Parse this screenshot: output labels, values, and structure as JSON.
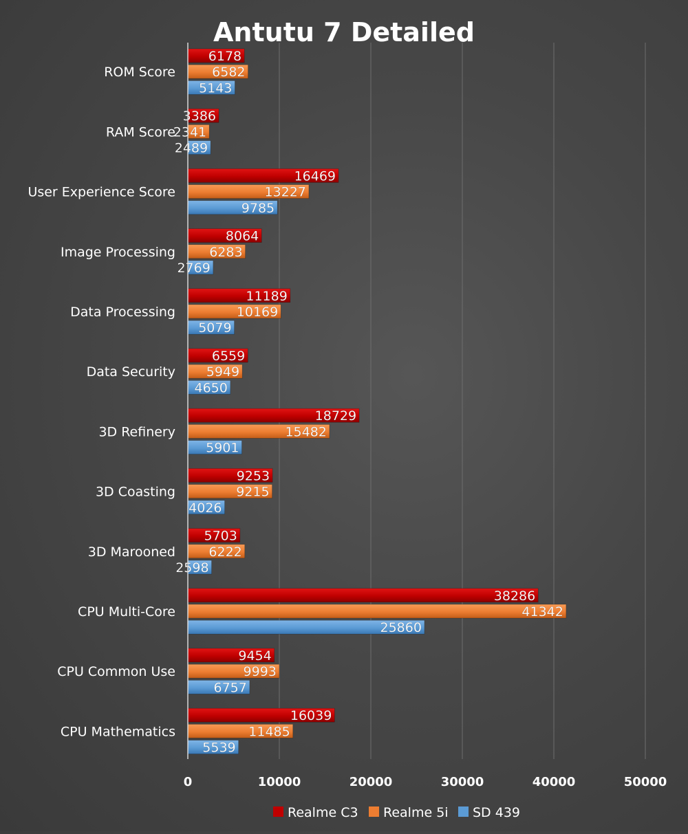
{
  "chart_data": {
    "type": "bar",
    "orientation": "horizontal",
    "title": "Antutu 7 Detailed",
    "categories": [
      "ROM Score",
      "RAM Score",
      "User Experience Score",
      "Image Processing",
      "Data Processing",
      "Data Security",
      "3D Refinery",
      "3D Coasting",
      "3D Marooned",
      "CPU Multi-Core",
      "CPU Common Use",
      "CPU Mathematics"
    ],
    "series": [
      {
        "name": "Realme C3",
        "color": "#c00000",
        "values": [
          6178,
          3386,
          16469,
          8064,
          11189,
          6559,
          18729,
          9253,
          5703,
          38286,
          9454,
          16039
        ]
      },
      {
        "name": "Realme 5i",
        "color": "#ed7d31",
        "values": [
          6582,
          2341,
          13227,
          6283,
          10169,
          5949,
          15482,
          9215,
          6222,
          41342,
          9993,
          11485
        ]
      },
      {
        "name": "SD 439",
        "color": "#5b9bd5",
        "values": [
          5143,
          2489,
          9785,
          2769,
          5079,
          4650,
          5901,
          4026,
          2598,
          25860,
          6757,
          5539
        ]
      }
    ],
    "xlim": [
      0,
      50000
    ],
    "xticks": [
      "0",
      "10000",
      "20000",
      "30000",
      "40000",
      "50000"
    ],
    "xtick_values": [
      0,
      10000,
      20000,
      30000,
      40000,
      50000
    ],
    "grid": "vertical",
    "legend_position": "bottom",
    "data_labels": "inside-end"
  }
}
